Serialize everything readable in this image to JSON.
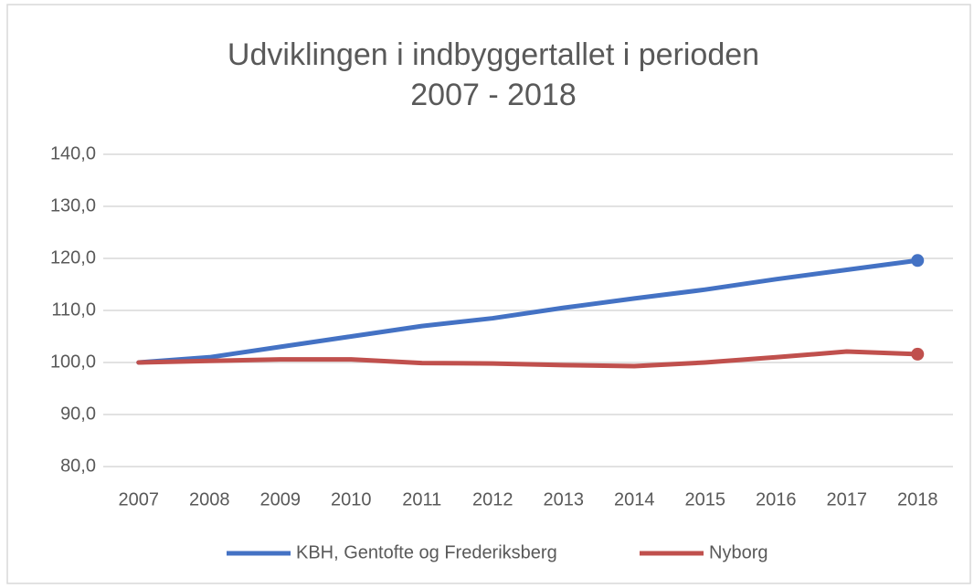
{
  "chart_data": {
    "type": "line",
    "title": [
      "Udviklingen i indbyggertallet i perioden",
      "2007 - 2018"
    ],
    "categories": [
      "2007",
      "2008",
      "2009",
      "2010",
      "2011",
      "2012",
      "2013",
      "2014",
      "2015",
      "2016",
      "2017",
      "2018"
    ],
    "series": [
      {
        "name": "KBH, Gentofte og Frederiksberg",
        "color": "#4472c4",
        "values": [
          100,
          101,
          103,
          105,
          107,
          108.5,
          110.5,
          112.3,
          114,
          116,
          117.8,
          119.6
        ]
      },
      {
        "name": "Nyborg",
        "color": "#c0504d",
        "values": [
          100,
          100.3,
          100.6,
          100.6,
          99.9,
          99.8,
          99.5,
          99.3,
          100,
          101,
          102.1,
          101.6
        ]
      }
    ],
    "ylim": [
      80,
      140
    ],
    "yticks": [
      {
        "value": 80,
        "label": "80,0"
      },
      {
        "value": 90,
        "label": "90,0"
      },
      {
        "value": 100,
        "label": "100,0"
      },
      {
        "value": 110,
        "label": "110,0"
      },
      {
        "value": 120,
        "label": "120,0"
      },
      {
        "value": 130,
        "label": "130,0"
      },
      {
        "value": 140,
        "label": "140,0"
      }
    ],
    "grid": true,
    "legend": "bottom"
  }
}
